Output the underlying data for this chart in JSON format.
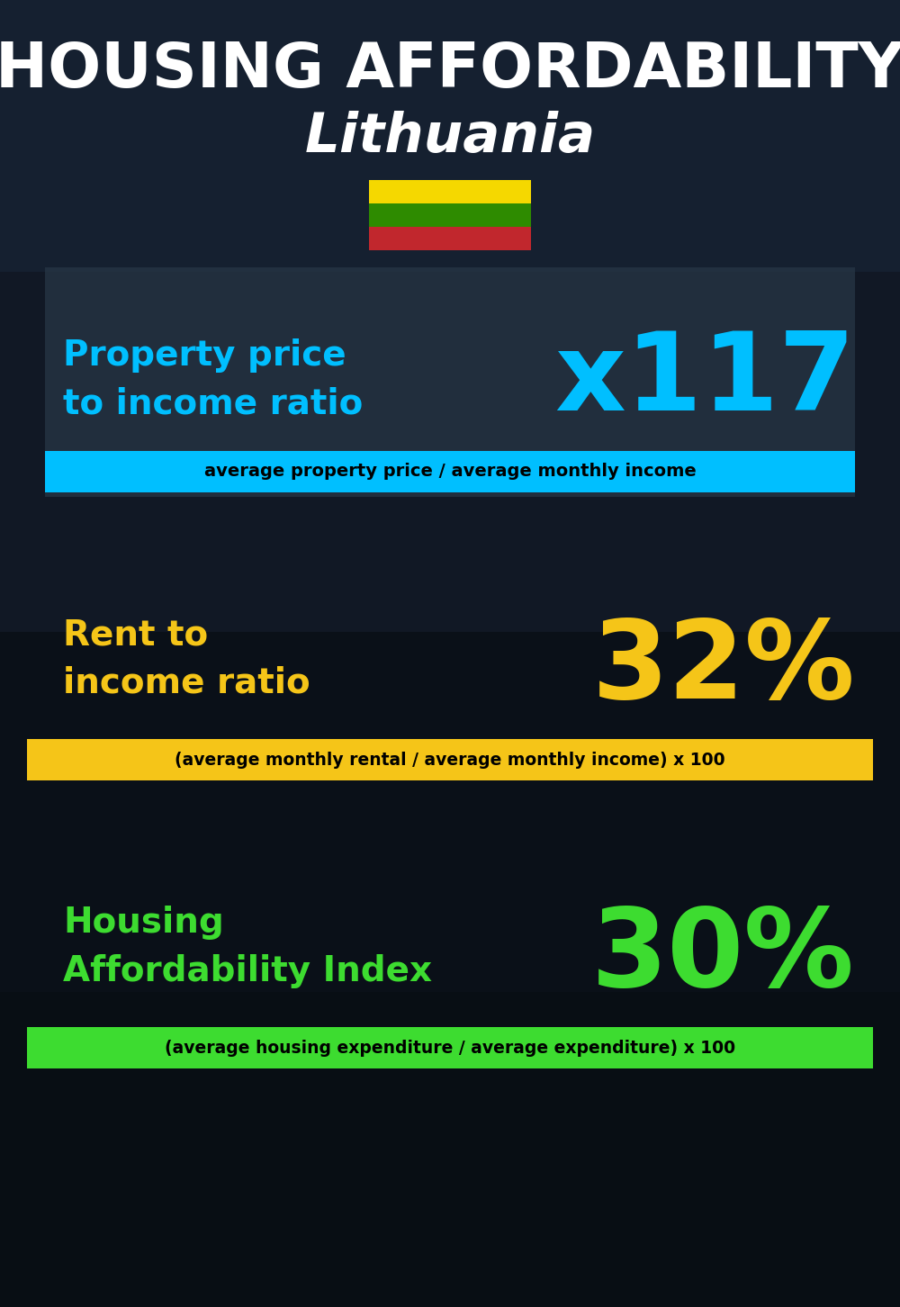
{
  "title_line1": "HOUSING AFFORDABILITY",
  "title_line2": "Lithuania",
  "flag_colors": [
    "#f5d800",
    "#2e8b00",
    "#c1272d"
  ],
  "section1_label": "Property price\nto income ratio",
  "section1_value": "x117",
  "section1_label_color": "#00bfff",
  "section1_value_color": "#00bfff",
  "section1_formula": "average property price / average monthly income",
  "section1_formula_bg": "#00bfff",
  "section2_label": "Rent to\nincome ratio",
  "section2_value": "32%",
  "section2_label_color": "#f5c518",
  "section2_value_color": "#f5c518",
  "section2_formula": "(average monthly rental / average monthly income) x 100",
  "section2_formula_bg": "#f5c518",
  "section3_label": "Housing\nAffordability Index",
  "section3_value": "30%",
  "section3_label_color": "#3ddc30",
  "section3_value_color": "#3ddc30",
  "section3_formula": "(average housing expenditure / average expenditure) x 100",
  "section3_formula_bg": "#3ddc30",
  "bg_color": "#0d1520",
  "title_color": "#ffffff",
  "formula_text_color": "#000000",
  "panel1_color": "#1e2d3d",
  "panel1_alpha": 0.72
}
